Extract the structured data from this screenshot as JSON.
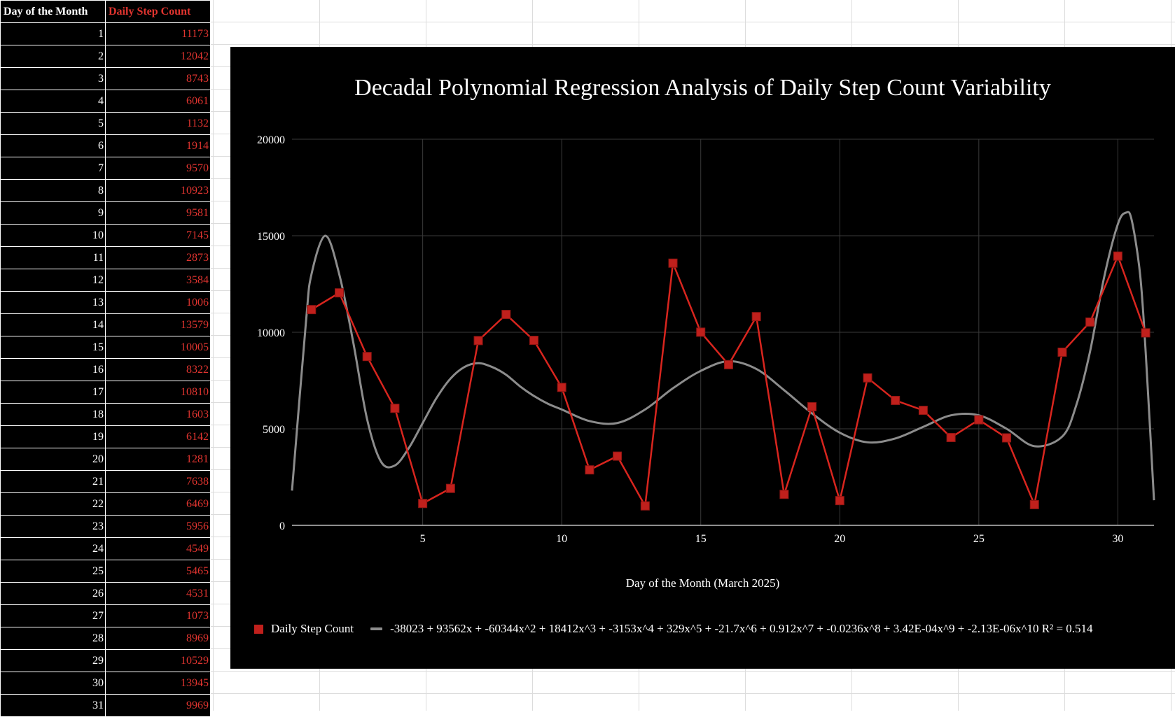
{
  "table": {
    "headers": [
      "Day of the Month",
      "Daily Step Count"
    ],
    "rows": [
      [
        1,
        11173
      ],
      [
        2,
        12042
      ],
      [
        3,
        8743
      ],
      [
        4,
        6061
      ],
      [
        5,
        1132
      ],
      [
        6,
        1914
      ],
      [
        7,
        9570
      ],
      [
        8,
        10923
      ],
      [
        9,
        9581
      ],
      [
        10,
        7145
      ],
      [
        11,
        2873
      ],
      [
        12,
        3584
      ],
      [
        13,
        1006
      ],
      [
        14,
        13579
      ],
      [
        15,
        10005
      ],
      [
        16,
        8322
      ],
      [
        17,
        10810
      ],
      [
        18,
        1603
      ],
      [
        19,
        6142
      ],
      [
        20,
        1281
      ],
      [
        21,
        7638
      ],
      [
        22,
        6469
      ],
      [
        23,
        5956
      ],
      [
        24,
        4549
      ],
      [
        25,
        5465
      ],
      [
        26,
        4531
      ],
      [
        27,
        1073
      ],
      [
        28,
        8969
      ],
      [
        29,
        10529
      ],
      [
        30,
        13945
      ],
      [
        31,
        9969
      ]
    ]
  },
  "colors": {
    "series": "#c0201c",
    "series_line": "#d8251e",
    "trendline": "#8c8c8c",
    "header_b": "#e0342f",
    "chart_bg": "#000000",
    "grid": "#3a3a3a"
  },
  "chart_data": {
    "type": "scatter",
    "title": "Decadal Polynomial Regression Analysis of Daily Step Count Variability",
    "xlabel": "Day of the Month (March 2025)",
    "ylabel": "",
    "xlim": [
      0.3,
      31.3
    ],
    "ylim": [
      0,
      20000
    ],
    "xticks": [
      5,
      10,
      15,
      20,
      25,
      30
    ],
    "yticks": [
      0,
      5000,
      10000,
      15000,
      20000
    ],
    "grid": true,
    "legend_position": "bottom",
    "series": [
      {
        "name": "Daily Step Count",
        "marker": "square",
        "x": [
          1,
          2,
          3,
          4,
          5,
          6,
          7,
          8,
          9,
          10,
          11,
          12,
          13,
          14,
          15,
          16,
          17,
          18,
          19,
          20,
          21,
          22,
          23,
          24,
          25,
          26,
          27,
          28,
          29,
          30,
          31
        ],
        "values": [
          11173,
          12042,
          8743,
          6061,
          1132,
          1914,
          9570,
          10923,
          9581,
          7145,
          2873,
          3584,
          1006,
          13579,
          10005,
          8322,
          10810,
          1603,
          6142,
          1281,
          7638,
          6469,
          5956,
          4549,
          5465,
          4531,
          1073,
          8969,
          10529,
          13945,
          9969
        ]
      }
    ],
    "trendline": {
      "label": "-38023 + 93562x + -60344x^2 + 18412x^3 + -3153x^4 + 329x^5 + -21.7x^6 + 0.912x^7 + -0.0236x^8 + 3.42E-04x^9 + -2.13E-06x^10 R² = 0.514",
      "x": [
        0.3,
        0.8,
        1.0,
        1.5,
        2.0,
        2.5,
        3.0,
        3.5,
        4.0,
        4.5,
        5.0,
        5.5,
        6.0,
        6.5,
        7.0,
        7.5,
        8.0,
        8.5,
        9.0,
        9.5,
        10.0,
        11.0,
        12.0,
        13.0,
        14.0,
        15.0,
        16.0,
        17.0,
        18.0,
        19.0,
        20.0,
        21.0,
        22.0,
        23.0,
        24.0,
        25.0,
        26.0,
        27.0,
        28.0,
        28.5,
        29.0,
        29.5,
        30.0,
        30.3,
        30.5,
        30.8,
        31.0,
        31.3
      ],
      "values": [
        1800,
        10500,
        13000,
        15000,
        13000,
        9500,
        5500,
        3300,
        3100,
        4000,
        5300,
        6600,
        7600,
        8200,
        8400,
        8200,
        7800,
        7200,
        6700,
        6300,
        6000,
        5400,
        5300,
        6000,
        7100,
        8000,
        8500,
        8100,
        7000,
        5800,
        4800,
        4300,
        4500,
        5100,
        5700,
        5700,
        5000,
        4100,
        4600,
        6200,
        9000,
        12800,
        15600,
        16200,
        15800,
        13000,
        9000,
        1300
      ]
    }
  }
}
